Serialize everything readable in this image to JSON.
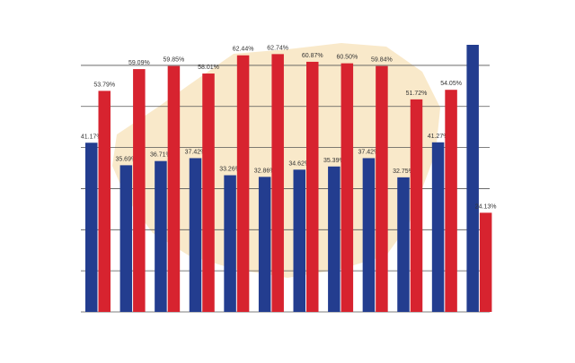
{
  "chart_data": {
    "type": "bar",
    "categories": [
      null,
      null,
      null,
      null,
      null,
      null,
      null,
      null,
      null,
      null,
      null,
      null
    ],
    "series": [
      {
        "color": "#233d8f",
        "values": [
          41.17,
          35.69,
          36.71,
          37.42,
          33.26,
          32.86,
          34.62,
          35.39,
          37.42,
          32.75,
          41.27,
          65
        ],
        "value_labels": [
          "41.17%",
          "35.69%",
          "36.71%",
          "37.42%",
          "33.26%",
          "32.86%",
          "34.62%",
          "35.39%",
          "37.42%",
          "32.75%",
          "41.27%",
          null
        ]
      },
      {
        "color": "#d7232f",
        "values": [
          53.79,
          59.09,
          59.85,
          58.01,
          62.44,
          62.74,
          60.87,
          60.5,
          59.84,
          51.72,
          54.05,
          24.13
        ],
        "value_labels": [
          "53.79%",
          "59.09%",
          "59.85%",
          "58.01%",
          "62.44%",
          "62.74%",
          "60.87%",
          "60.50%",
          "59.84%",
          "51.72%",
          "54.05%",
          "24.13%"
        ]
      }
    ],
    "ylim": [
      0,
      65
    ],
    "yticks": [
      0,
      10,
      20,
      30,
      40,
      50,
      60
    ],
    "grid": true,
    "show_tick_labels": false
  }
}
